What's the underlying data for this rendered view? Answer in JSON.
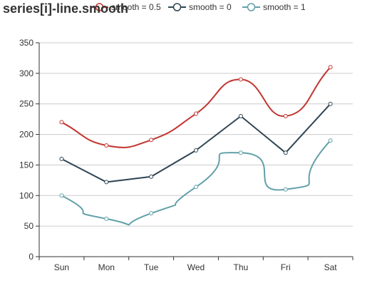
{
  "title": "series[i]-line.smooth",
  "chart_data": {
    "type": "line",
    "title": "series[i]-line.smooth",
    "categories": [
      "Sun",
      "Mon",
      "Tue",
      "Wed",
      "Thu",
      "Fri",
      "Sat"
    ],
    "ylim": [
      0,
      350
    ],
    "yticks": [
      0,
      50,
      100,
      150,
      200,
      250,
      300,
      350
    ],
    "grid": true,
    "legend_position": "top-center",
    "series": [
      {
        "name": "smooth = 0.5",
        "color": "#c23531",
        "smooth": 0.5,
        "values": [
          220,
          182,
          191,
          234,
          290,
          230,
          310
        ]
      },
      {
        "name": "smooth = 0",
        "color": "#2f4554",
        "smooth": 0,
        "values": [
          160,
          122,
          131,
          174,
          230,
          170,
          250
        ]
      },
      {
        "name": "smooth = 1",
        "color": "#61a0a8",
        "smooth": 1,
        "values": [
          100,
          62,
          71,
          114,
          170,
          110,
          190
        ]
      }
    ]
  }
}
